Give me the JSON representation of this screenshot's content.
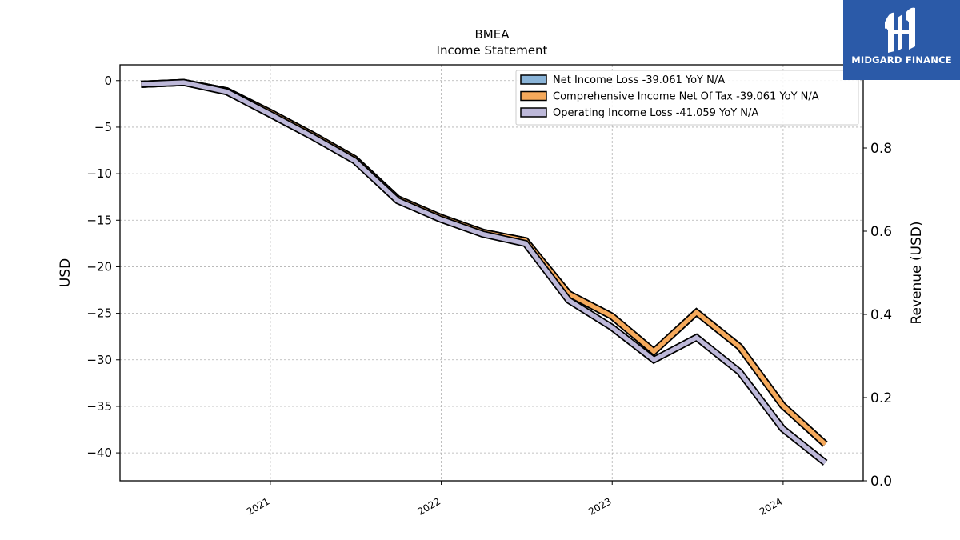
{
  "chart_data": {
    "type": "line",
    "title": "BMEA",
    "subtitle": "Income Statement",
    "ylabel": "USD",
    "y2label": "Revenue (USD)",
    "ylim": [
      -43,
      1.7
    ],
    "y2lim": [
      0.0,
      1.0
    ],
    "yticks": [
      0,
      -5,
      -10,
      -15,
      -20,
      -25,
      -30,
      -35,
      -40
    ],
    "ytick_labels": [
      "0",
      "−5",
      "−10",
      "−15",
      "−20",
      "−25",
      "−30",
      "−35",
      "−40"
    ],
    "y2ticks": [
      0.0,
      0.2,
      0.4,
      0.6,
      0.8
    ],
    "y2tick_labels": [
      "0.0",
      "0.2",
      "0.4",
      "0.6",
      "0.8"
    ],
    "xlim": [
      "2020-02-15",
      "2024-06-20"
    ],
    "xticks": [
      "2021-01-01",
      "2022-01-01",
      "2023-01-01",
      "2024-01-01"
    ],
    "xtick_labels": [
      "2021",
      "2022",
      "2023",
      "2024"
    ],
    "grid": true,
    "legend_position": "upper-right",
    "x": [
      "2020-03-31",
      "2020-06-30",
      "2020-09-30",
      "2020-12-31",
      "2021-03-31",
      "2021-06-30",
      "2021-09-30",
      "2021-12-31",
      "2022-03-31",
      "2022-06-30",
      "2022-09-30",
      "2022-12-31",
      "2023-03-31",
      "2023-06-30",
      "2023-09-30",
      "2023-12-31",
      "2024-03-31"
    ],
    "series": [
      {
        "name": "Net Income Loss  -39.061 YoY N/A",
        "color": "#8ab4d8",
        "values": [
          -0.4,
          -0.2,
          -1.1,
          -3.4,
          -5.8,
          -8.4,
          -12.7,
          -14.7,
          -16.3,
          -17.2,
          -22.9,
          -25.3,
          -29.1,
          -24.9,
          -28.6,
          -34.9,
          -39.061
        ]
      },
      {
        "name": "Comprehensive Income Net Of Tax  -39.061 YoY N/A",
        "color": "#f5a95b",
        "values": [
          -0.4,
          -0.2,
          -1.1,
          -3.4,
          -5.8,
          -8.4,
          -12.7,
          -14.7,
          -16.3,
          -17.2,
          -22.9,
          -25.3,
          -29.1,
          -24.9,
          -28.6,
          -34.9,
          -39.061
        ]
      },
      {
        "name": "Operating Income Loss  -41.059 YoY N/A",
        "color": "#bdb8d9",
        "values": [
          -0.4,
          -0.2,
          -1.2,
          -3.6,
          -6.0,
          -8.6,
          -12.9,
          -14.9,
          -16.5,
          -17.5,
          -23.6,
          -26.5,
          -30.0,
          -27.6,
          -31.3,
          -37.4,
          -41.059
        ]
      }
    ]
  },
  "logo": {
    "name": "MIDGARD FINANCE"
  }
}
